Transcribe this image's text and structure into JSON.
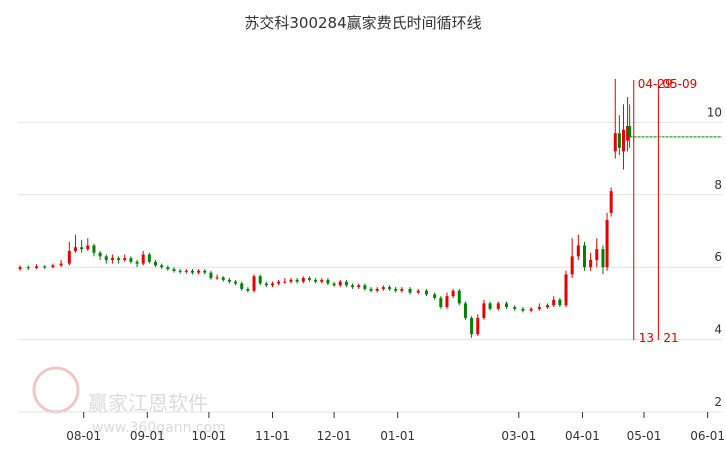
{
  "chart_data": {
    "type": "candlestick",
    "title": "苏交科300284赢家费氏时间循环线",
    "watermark": {
      "name": "赢家江恩软件",
      "url": "www.360gann.com"
    },
    "xlim": [
      -1,
      342
    ],
    "ylim": [
      2,
      12
    ],
    "xticks": [
      {
        "value": 31,
        "label": "08-01"
      },
      {
        "value": 62,
        "label": "09-01"
      },
      {
        "value": 92,
        "label": "10-01"
      },
      {
        "value": 123,
        "label": "11-01"
      },
      {
        "value": 153,
        "label": "12-01"
      },
      {
        "value": 184,
        "label": "01-01"
      },
      {
        "value": 243,
        "label": "03-01"
      },
      {
        "value": 274,
        "label": "04-01"
      },
      {
        "value": 304,
        "label": "05-01"
      },
      {
        "value": 335,
        "label": "06-01"
      }
    ],
    "yticks": [
      2,
      4,
      6,
      8,
      10
    ],
    "grid": true,
    "up_color": "#e60000",
    "down_color": "#008000",
    "x": [
      0,
      4,
      8,
      12,
      16,
      20,
      24,
      27,
      30,
      33,
      36,
      39,
      42,
      45,
      48,
      51,
      54,
      57,
      60,
      63,
      66,
      69,
      72,
      75,
      78,
      81,
      84,
      87,
      90,
      93,
      96,
      99,
      102,
      105,
      108,
      111,
      114,
      117,
      120,
      123,
      126,
      129,
      132,
      135,
      138,
      141,
      144,
      147,
      150,
      153,
      156,
      159,
      162,
      165,
      168,
      171,
      174,
      177,
      180,
      183,
      186,
      190,
      194,
      198,
      202,
      205,
      208,
      211,
      214,
      217,
      220,
      223,
      226,
      229,
      233,
      237,
      241,
      245,
      249,
      253,
      257,
      260,
      263,
      266,
      269,
      272,
      275,
      278,
      281,
      284,
      286,
      288,
      290,
      292,
      294,
      296,
      297
    ],
    "open": [
      5.95,
      6.0,
      5.98,
      6.02,
      6.0,
      6.05,
      6.1,
      6.45,
      6.55,
      6.5,
      6.6,
      6.4,
      6.3,
      6.2,
      6.25,
      6.2,
      6.25,
      6.15,
      6.1,
      6.35,
      6.15,
      6.05,
      6.0,
      5.95,
      5.9,
      5.88,
      5.9,
      5.85,
      5.9,
      5.85,
      5.7,
      5.72,
      5.65,
      5.6,
      5.55,
      5.4,
      5.35,
      5.75,
      5.55,
      5.5,
      5.55,
      5.6,
      5.6,
      5.65,
      5.6,
      5.7,
      5.65,
      5.6,
      5.65,
      5.55,
      5.5,
      5.6,
      5.5,
      5.45,
      5.5,
      5.4,
      5.35,
      5.4,
      5.45,
      5.4,
      5.35,
      5.4,
      5.3,
      5.35,
      5.25,
      5.15,
      4.9,
      5.2,
      5.35,
      5.0,
      4.6,
      4.15,
      4.6,
      5.0,
      4.85,
      5.0,
      4.9,
      4.85,
      4.8,
      4.85,
      4.9,
      4.95,
      5.1,
      4.95,
      5.8,
      6.3,
      6.6,
      6.0,
      6.2,
      6.5,
      6.0,
      7.5,
      9.2,
      9.7,
      9.2,
      9.5,
      9.9
    ],
    "close": [
      6.0,
      5.98,
      6.02,
      6.0,
      6.05,
      6.1,
      6.45,
      6.55,
      6.5,
      6.6,
      6.4,
      6.3,
      6.2,
      6.25,
      6.2,
      6.25,
      6.15,
      6.1,
      6.35,
      6.15,
      6.05,
      6.0,
      5.95,
      5.9,
      5.88,
      5.9,
      5.85,
      5.9,
      5.85,
      5.7,
      5.72,
      5.65,
      5.6,
      5.55,
      5.4,
      5.35,
      5.75,
      5.55,
      5.5,
      5.55,
      5.6,
      5.6,
      5.65,
      5.6,
      5.7,
      5.65,
      5.6,
      5.65,
      5.55,
      5.5,
      5.6,
      5.5,
      5.45,
      5.5,
      5.4,
      5.35,
      5.4,
      5.45,
      5.4,
      5.35,
      5.4,
      5.3,
      5.35,
      5.25,
      5.15,
      4.9,
      5.2,
      5.35,
      5.0,
      4.6,
      4.15,
      4.6,
      5.0,
      4.85,
      5.0,
      4.9,
      4.85,
      4.8,
      4.85,
      4.9,
      4.95,
      5.1,
      4.95,
      5.8,
      6.3,
      6.6,
      6.0,
      6.2,
      6.5,
      6.0,
      7.3,
      8.1,
      9.7,
      9.3,
      9.8,
      9.9,
      9.6
    ],
    "high": [
      6.05,
      6.05,
      6.08,
      6.06,
      6.1,
      6.2,
      6.7,
      6.9,
      6.75,
      6.8,
      6.65,
      6.45,
      6.35,
      6.35,
      6.3,
      6.35,
      6.3,
      6.2,
      6.45,
      6.4,
      6.2,
      6.1,
      6.05,
      6.0,
      5.95,
      5.95,
      5.95,
      5.95,
      5.95,
      5.9,
      5.8,
      5.75,
      5.7,
      5.65,
      5.6,
      5.45,
      5.8,
      5.8,
      5.6,
      5.6,
      5.65,
      5.7,
      5.7,
      5.7,
      5.75,
      5.75,
      5.7,
      5.7,
      5.7,
      5.6,
      5.65,
      5.65,
      5.55,
      5.55,
      5.55,
      5.45,
      5.45,
      5.5,
      5.5,
      5.45,
      5.45,
      5.45,
      5.4,
      5.4,
      5.3,
      5.2,
      5.3,
      5.4,
      5.4,
      5.05,
      4.65,
      4.7,
      5.1,
      5.05,
      5.05,
      5.05,
      4.95,
      4.9,
      4.9,
      5.0,
      5.0,
      5.2,
      5.15,
      5.9,
      6.8,
      6.9,
      6.7,
      6.4,
      6.8,
      6.6,
      7.5,
      8.2,
      11.2,
      10.2,
      10.5,
      10.7,
      10.5
    ],
    "low": [
      5.9,
      5.92,
      5.95,
      5.95,
      5.97,
      6.0,
      6.05,
      6.4,
      6.4,
      6.45,
      6.3,
      6.2,
      6.1,
      6.1,
      6.1,
      6.15,
      6.1,
      6.0,
      6.05,
      6.1,
      6.0,
      5.95,
      5.9,
      5.85,
      5.82,
      5.82,
      5.8,
      5.8,
      5.8,
      5.65,
      5.65,
      5.6,
      5.55,
      5.5,
      5.35,
      5.3,
      5.3,
      5.5,
      5.45,
      5.45,
      5.5,
      5.55,
      5.55,
      5.55,
      5.55,
      5.6,
      5.55,
      5.55,
      5.5,
      5.45,
      5.45,
      5.45,
      5.4,
      5.4,
      5.35,
      5.3,
      5.3,
      5.35,
      5.35,
      5.3,
      5.3,
      5.25,
      5.25,
      5.2,
      5.1,
      4.85,
      4.85,
      5.15,
      4.95,
      4.55,
      4.05,
      4.1,
      4.55,
      4.8,
      4.8,
      4.85,
      4.8,
      4.75,
      4.75,
      4.8,
      4.85,
      4.9,
      4.9,
      4.9,
      5.7,
      6.2,
      5.9,
      5.9,
      6.0,
      5.8,
      5.9,
      7.4,
      9.0,
      9.1,
      8.7,
      9.2,
      9.3
    ],
    "ref_line": 9.6,
    "cycle_lines": [
      {
        "x": 299,
        "label": "04-29",
        "count": 13
      },
      {
        "x": 311,
        "label": "05-09",
        "count": 21
      }
    ]
  }
}
